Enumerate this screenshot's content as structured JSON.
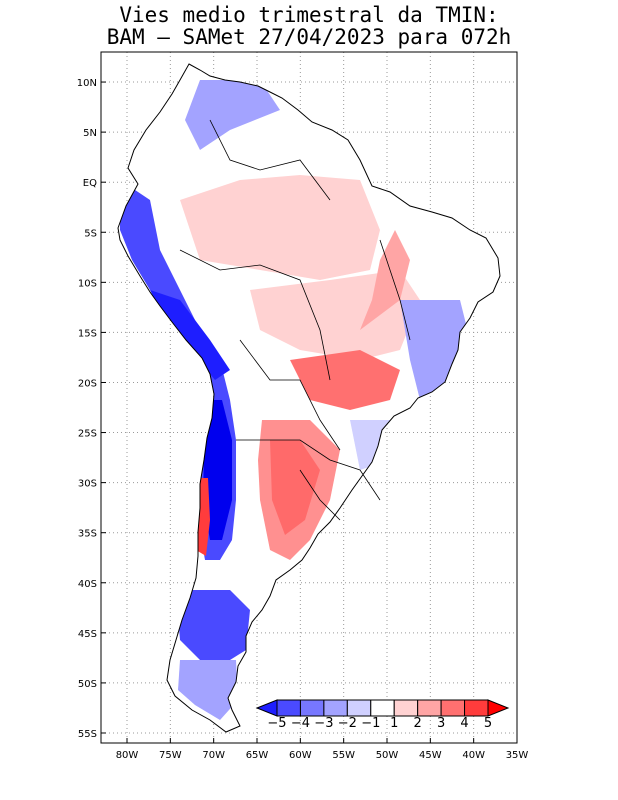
{
  "title": {
    "line1": "Vies medio trimestral da TMIN:",
    "line2": "BAM – SAMet 27/04/2023  para 072h"
  },
  "map": {
    "lon_range": [
      -83,
      -35
    ],
    "lat_range": [
      -56,
      13
    ],
    "grid": true,
    "lat_ticks": [
      {
        "label": "10N",
        "value": 10
      },
      {
        "label": "5N",
        "value": 5
      },
      {
        "label": "EQ",
        "value": 0
      },
      {
        "label": "5S",
        "value": -5
      },
      {
        "label": "10S",
        "value": -10
      },
      {
        "label": "15S",
        "value": -15
      },
      {
        "label": "20S",
        "value": -20
      },
      {
        "label": "25S",
        "value": -25
      },
      {
        "label": "30S",
        "value": -30
      },
      {
        "label": "35S",
        "value": -35
      },
      {
        "label": "40S",
        "value": -40
      },
      {
        "label": "45S",
        "value": -45
      },
      {
        "label": "50S",
        "value": -50
      },
      {
        "label": "55S",
        "value": -55
      }
    ],
    "lon_ticks": [
      {
        "label": "80W",
        "value": -80
      },
      {
        "label": "75W",
        "value": -75
      },
      {
        "label": "70W",
        "value": -70
      },
      {
        "label": "65W",
        "value": -65
      },
      {
        "label": "60W",
        "value": -60
      },
      {
        "label": "55W",
        "value": -55
      },
      {
        "label": "50W",
        "value": -50
      },
      {
        "label": "45W",
        "value": -45
      },
      {
        "label": "40W",
        "value": -40
      },
      {
        "label": "35W",
        "value": -35
      }
    ]
  },
  "colorbar": {
    "labels": [
      "−5",
      "−4",
      "−3",
      "−2",
      "−1",
      "1",
      "2",
      "3",
      "4",
      "5"
    ],
    "colors": [
      "#1e1eff",
      "#4a4aff",
      "#7777ff",
      "#a3a3ff",
      "#d0d0ff",
      "#ffffff",
      "#ffd2d2",
      "#ffa5a5",
      "#ff7070",
      "#ff3c3c",
      "#ff0000"
    ]
  },
  "colors": {
    "strong_blue": "#0000ee",
    "strong_red": "#ee0000"
  }
}
